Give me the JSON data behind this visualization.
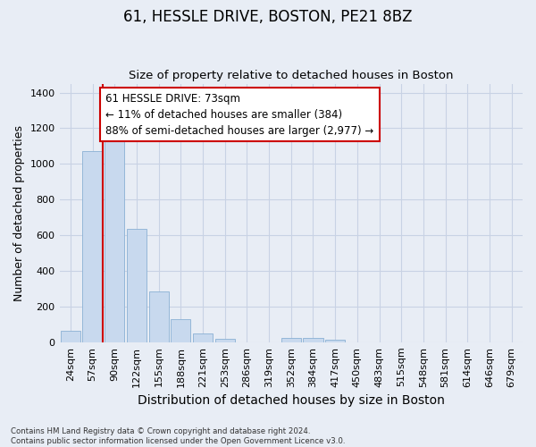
{
  "title": "61, HESSLE DRIVE, BOSTON, PE21 8BZ",
  "subtitle": "Size of property relative to detached houses in Boston",
  "xlabel": "Distribution of detached houses by size in Boston",
  "ylabel": "Number of detached properties",
  "footnote": "Contains HM Land Registry data © Crown copyright and database right 2024.\nContains public sector information licensed under the Open Government Licence v3.0.",
  "bar_categories": [
    "24sqm",
    "57sqm",
    "90sqm",
    "122sqm",
    "155sqm",
    "188sqm",
    "221sqm",
    "253sqm",
    "286sqm",
    "319sqm",
    "352sqm",
    "384sqm",
    "417sqm",
    "450sqm",
    "483sqm",
    "515sqm",
    "548sqm",
    "581sqm",
    "614sqm",
    "646sqm",
    "679sqm"
  ],
  "bar_values": [
    65,
    1070,
    1160,
    635,
    285,
    130,
    48,
    20,
    0,
    0,
    22,
    22,
    12,
    0,
    0,
    0,
    0,
    0,
    0,
    0,
    0
  ],
  "bar_color": "#c8d9ee",
  "bar_edge_color": "#8ab0d4",
  "vline_x": 1.45,
  "annotation_text": "61 HESSLE DRIVE: 73sqm\n← 11% of detached houses are smaller (384)\n88% of semi-detached houses are larger (2,977) →",
  "annotation_box_facecolor": "#ffffff",
  "annotation_box_edgecolor": "#cc0000",
  "vline_color": "#cc0000",
  "ylim": [
    0,
    1450
  ],
  "yticks": [
    0,
    200,
    400,
    600,
    800,
    1000,
    1200,
    1400
  ],
  "grid_color": "#c8d2e4",
  "bg_color": "#e8edf5",
  "title_fontsize": 12,
  "subtitle_fontsize": 9.5,
  "xlabel_fontsize": 10,
  "ylabel_fontsize": 9,
  "tick_fontsize": 8,
  "annot_fontsize": 8.5
}
